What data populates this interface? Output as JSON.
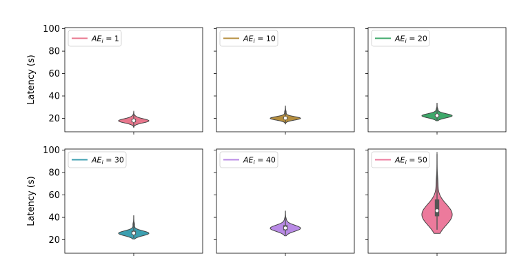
{
  "chart_data": {
    "type": "violin",
    "ylabel": "Latency (s)",
    "ylim": [
      8,
      101
    ],
    "yticks": [
      20,
      40,
      60,
      80,
      100
    ],
    "grid": false,
    "legend_placement": "upper-left",
    "panels": [
      {
        "legend_prefix": "AE",
        "legend_sub": "i",
        "legend_suffix": " = 1",
        "color": "#e8768c",
        "stats": {
          "min": 12.5,
          "q1": 16.5,
          "median": 18.0,
          "q3": 19.5,
          "max": 26.0,
          "mode": 17.8
        }
      },
      {
        "legend_prefix": "AE",
        "legend_sub": "i",
        "legend_suffix": " = 10",
        "color": "#b58e3e",
        "stats": {
          "min": 15.5,
          "q1": 19.0,
          "median": 20.2,
          "q3": 21.5,
          "max": 31.0,
          "mode": 20.0
        }
      },
      {
        "legend_prefix": "AE",
        "legend_sub": "i",
        "legend_suffix": " = 20",
        "color": "#3ea86a",
        "stats": {
          "min": 18.5,
          "q1": 21.0,
          "median": 22.5,
          "q3": 24.0,
          "max": 33.5,
          "mode": 22.3
        }
      },
      {
        "legend_prefix": "AE",
        "legend_sub": "i",
        "legend_suffix": " = 30",
        "color": "#3c9fb0",
        "stats": {
          "min": 21.5,
          "q1": 24.5,
          "median": 26.0,
          "q3": 28.0,
          "max": 41.5,
          "mode": 25.8
        }
      },
      {
        "legend_prefix": "AE",
        "legend_sub": "i",
        "legend_suffix": " = 40",
        "color": "#b98ae6",
        "stats": {
          "min": 24.5,
          "q1": 28.5,
          "median": 30.5,
          "q3": 33.0,
          "max": 45.5,
          "mode": 30.3
        }
      },
      {
        "legend_prefix": "AE",
        "legend_sub": "i",
        "legend_suffix": " = 50",
        "color": "#ec7a9c",
        "stats": {
          "min": 29.0,
          "q1": 41.0,
          "median": 46.0,
          "q3": 56.0,
          "max": 96.5,
          "mode": 42.5
        }
      }
    ]
  }
}
